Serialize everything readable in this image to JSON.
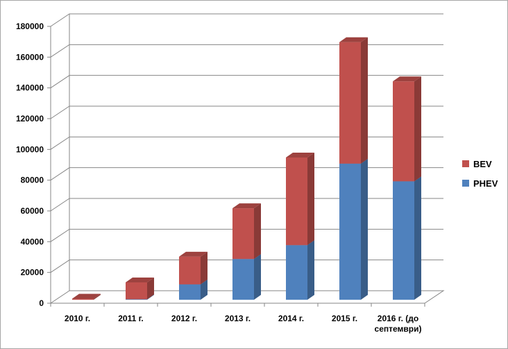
{
  "chart_data": {
    "type": "bar",
    "stacked": true,
    "style": "3d-columns",
    "categories": [
      "2010 г.",
      "2011 г.",
      "2012 г.",
      "2013 г.",
      "2014 г.",
      "2015 г.",
      [
        "2016 г. (до",
        "септември)"
      ]
    ],
    "series": [
      {
        "name": "PHEV",
        "color": "#4f81bd",
        "values": [
          0,
          300,
          10000,
          26500,
          35500,
          88500,
          77000
        ]
      },
      {
        "name": "BEV",
        "color": "#c0504d",
        "values": [
          700,
          11000,
          18000,
          33000,
          57000,
          79000,
          65000
        ]
      }
    ],
    "ylim": [
      0,
      180000
    ],
    "yticks": [
      0,
      20000,
      40000,
      60000,
      80000,
      100000,
      120000,
      140000,
      160000,
      180000
    ],
    "grid": true,
    "legend": "right"
  }
}
